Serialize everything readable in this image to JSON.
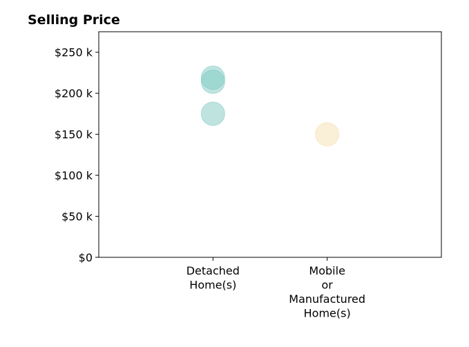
{
  "chart_data": {
    "type": "scatter",
    "title": "Selling Price",
    "xlabel": "",
    "ylabel": "",
    "categories": [
      [
        "Detached",
        "Home(s)"
      ],
      [
        "Mobile",
        "or",
        "Manufactured",
        "Home(s)"
      ]
    ],
    "y_ticks": [
      {
        "value": 0,
        "label": "$0"
      },
      {
        "value": 50000,
        "label": "$50 k"
      },
      {
        "value": 100000,
        "label": "$100 k"
      },
      {
        "value": 150000,
        "label": "$150 k"
      },
      {
        "value": 200000,
        "label": "$200 k"
      },
      {
        "value": 250000,
        "label": "$250 k"
      }
    ],
    "ylim": [
      0,
      275000
    ],
    "x_range": [
      -1,
      2
    ],
    "grid": false,
    "points": [
      {
        "category": 0,
        "value": 219000,
        "color": "#7fcac1"
      },
      {
        "category": 0,
        "value": 214000,
        "color": "#7fcac1"
      },
      {
        "category": 0,
        "value": 175000,
        "color": "#7fcac1"
      },
      {
        "category": 1,
        "value": 150000,
        "color": "#f6dfb0"
      }
    ]
  }
}
